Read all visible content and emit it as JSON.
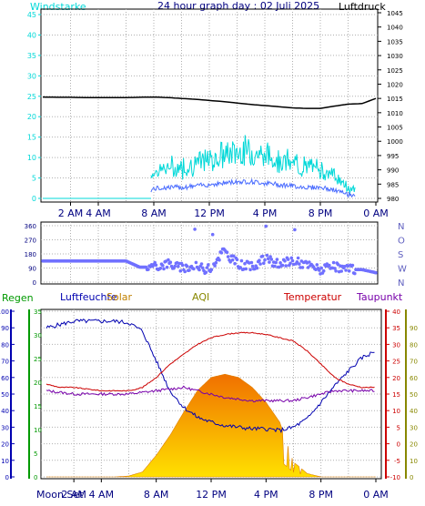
{
  "header": {
    "title": "24 hour graph day : 02 Juli 2025",
    "left_label": "Windstarke",
    "right_label": "Luftdruck"
  },
  "legend_bottom": {
    "regen": "Regen",
    "luftfeuchte": "Luftfeuchte",
    "solar": "Solar",
    "aqi": "AQI",
    "temperatur": "Temperatur",
    "taupunkt": "Taupunkt"
  },
  "footer": {
    "moon": "Moon Set"
  },
  "x_ticks": [
    "2 AM",
    "4 AM",
    "8 AM",
    "12 PM",
    "4 PM",
    "8 PM",
    "0 AM"
  ],
  "bottom_x_ticks": [
    "2 AM",
    "4 AM",
    "8 AM",
    "12 PM",
    "4 PM",
    "8 PM",
    "0 AM"
  ],
  "colors": {
    "wind": "#00d8d8",
    "wind_avg": "#4a6cff",
    "pressure": "#000000",
    "direction": "#7070ff",
    "humidity": "#0000b0",
    "temperature": "#cc0000",
    "dewpoint": "#7700aa",
    "rain_axis": "#009900",
    "solar": "#f0a000",
    "taupunkt_axis": "#888800"
  },
  "chart_data": [
    {
      "type": "line",
      "title": "24 hour graph day : 02 Juli 2025",
      "x_hours": [
        0,
        1,
        2,
        3,
        4,
        5,
        6,
        7,
        8,
        9,
        10,
        11,
        12,
        13,
        14,
        15,
        16,
        17,
        18,
        19,
        20,
        21,
        22,
        23,
        24
      ],
      "xlim": [
        0,
        24
      ],
      "series": [
        {
          "name": "Windstarke",
          "axis": "left",
          "values": [
            0,
            0,
            0,
            0,
            0,
            0,
            0,
            0,
            5,
            6,
            6,
            7,
            8,
            9,
            10,
            10,
            9,
            8,
            7,
            6,
            6,
            4,
            1,
            1,
            0
          ]
        },
        {
          "name": "Luftdruck",
          "axis": "right",
          "values": [
            1015.5,
            1015.4,
            1015.4,
            1015.3,
            1015.3,
            1015.3,
            1015.3,
            1015.4,
            1015.5,
            1015.3,
            1015.0,
            1014.7,
            1014.3,
            1013.9,
            1013.4,
            1012.9,
            1012.5,
            1012.1,
            1011.7,
            1011.5,
            1011.5,
            1012.3,
            1013.0,
            1013.2,
            1015.0
          ]
        }
      ],
      "ylim_left": [
        0,
        45
      ],
      "ylim_right": [
        980,
        1045
      ],
      "y_ticks_left": [
        "0",
        "5",
        "10",
        "15",
        "20",
        "25",
        "30",
        "35",
        "40",
        "45"
      ],
      "y_ticks_right": [
        "980",
        "985",
        "990",
        "995",
        "1000",
        "1005",
        "1010",
        "1015",
        "1020",
        "1025",
        "1030",
        "1035",
        "1040",
        "1045"
      ]
    },
    {
      "type": "scatter",
      "x_hours": [
        0,
        1,
        2,
        3,
        4,
        5,
        6,
        7,
        8,
        9,
        10,
        11,
        12,
        13,
        14,
        15,
        16,
        17,
        18,
        19,
        20,
        21,
        22,
        23,
        24
      ],
      "xlim": [
        0,
        24
      ],
      "series": [
        {
          "name": "Windrichtung",
          "values": [
            135,
            135,
            135,
            135,
            135,
            135,
            135,
            95,
            95,
            120,
            90,
            100,
            80,
            200,
            120,
            95,
            150,
            110,
            140,
            110,
            80,
            95,
            80,
            80,
            60
          ]
        }
      ],
      "ylim": [
        0,
        360
      ],
      "y_ticks_left": [
        "0",
        "90",
        "180",
        "270",
        "360"
      ],
      "y_ticks_right": [
        "N",
        "W",
        "S",
        "O",
        "N"
      ]
    },
    {
      "type": "line",
      "x_hours": [
        0,
        1,
        2,
        3,
        4,
        5,
        6,
        7,
        8,
        9,
        10,
        11,
        12,
        13,
        14,
        15,
        16,
        17,
        18,
        19,
        20,
        21,
        22,
        23,
        24
      ],
      "xlim": [
        0,
        24
      ],
      "series": [
        {
          "name": "Luftfeuchte",
          "axis": "humidity",
          "values": [
            90,
            92,
            94,
            94,
            94,
            94,
            93,
            88,
            70,
            52,
            42,
            36,
            33,
            31,
            30,
            29,
            29,
            28,
            30,
            35,
            45,
            55,
            64,
            72,
            76
          ]
        },
        {
          "name": "Temperatur",
          "axis": "temperature",
          "values": [
            18,
            17,
            17,
            16.5,
            16,
            16,
            16,
            17,
            20,
            24,
            27,
            30,
            32,
            33,
            33.5,
            33.5,
            33,
            32,
            31,
            28,
            24,
            20,
            18,
            17,
            17
          ]
        },
        {
          "name": "Taupunkt",
          "axis": "temperature",
          "values": [
            16,
            15.5,
            15,
            15,
            15,
            15,
            15,
            15.5,
            16,
            16.5,
            17,
            16,
            15,
            14,
            13.5,
            13,
            13,
            13,
            13,
            14,
            15,
            16,
            16,
            16,
            16
          ]
        },
        {
          "name": "Solar",
          "axis": "solar",
          "values": [
            0,
            0,
            0,
            0,
            0,
            0,
            5,
            30,
            130,
            250,
            390,
            520,
            600,
            620,
            600,
            540,
            450,
            330,
            90,
            20,
            0,
            0,
            0,
            0,
            0
          ]
        }
      ],
      "ylim_humidity": [
        0,
        100
      ],
      "ylim_temperature": [
        -10,
        40
      ],
      "y_ticks_rain": [
        "0",
        "5",
        "10",
        "15",
        "20",
        "25",
        "30",
        "35"
      ],
      "y_ticks_humidity": [
        "0",
        "10",
        "20",
        "30",
        "40",
        "50",
        "60",
        "70",
        "80",
        "90",
        "100"
      ],
      "y_ticks_temperature": [
        "-10",
        "-5",
        "0",
        "5",
        "10",
        "15",
        "20",
        "25",
        "30",
        "35",
        "40"
      ],
      "y_ticks_taupunkt": [
        "0",
        "10",
        "20",
        "30",
        "40",
        "50",
        "60",
        "70",
        "80",
        "90"
      ]
    }
  ]
}
